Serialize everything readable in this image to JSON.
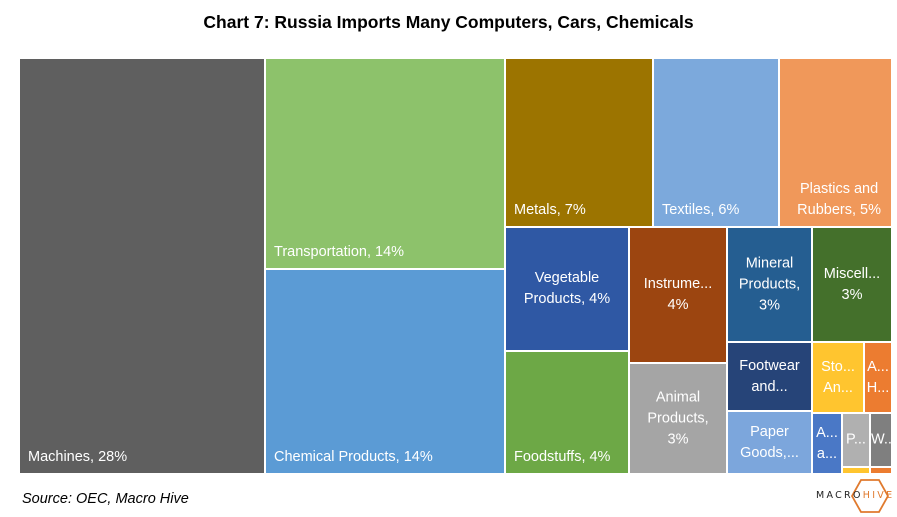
{
  "title": "Chart 7: Russia Imports Many Computers, Cars, Chemicals",
  "source": "Source: OEC, Macro Hive",
  "logo": {
    "left": "MACRO",
    "right": "HIVE",
    "accent": "#e07a2e"
  },
  "chart_data": {
    "type": "treemap",
    "tiles": [
      {
        "label": "Machines, 28%",
        "value": 28,
        "color": "#5f5f5f"
      },
      {
        "label": "Transportation, 14%",
        "value": 14,
        "color": "#8dc26b"
      },
      {
        "label": "Chemical Products, 14%",
        "value": 14,
        "color": "#5b9bd5"
      },
      {
        "label": "Metals, 7%",
        "value": 7,
        "color": "#9c7400"
      },
      {
        "label": "Textiles, 6%",
        "value": 6,
        "color": "#7ca9dc"
      },
      {
        "label": "Plastics and\nRubbers, 5%",
        "value": 5,
        "color": "#f0985a"
      },
      {
        "label": "Vegetable\nProducts, 4%",
        "value": 4,
        "color": "#2f58a4"
      },
      {
        "label": "Foodstuffs, 4%",
        "value": 4,
        "color": "#6da846"
      },
      {
        "label": "Instrume...\n4%",
        "value": 4,
        "color": "#9c4510"
      },
      {
        "label": "Animal\nProducts,\n3%",
        "value": 3,
        "color": "#a5a5a5"
      },
      {
        "label": "Mineral\nProducts,\n3%",
        "value": 3,
        "color": "#255e91"
      },
      {
        "label": "Miscell...\n3%",
        "value": 3,
        "color": "#44702b"
      },
      {
        "label": "Footwear\nand...",
        "value": 2,
        "color": "#264478"
      },
      {
        "label": "Paper\nGoods,...",
        "value": 2,
        "color": "#7ca6dc"
      },
      {
        "label": "Sto...\nAn...",
        "value": 1,
        "color": "#ffc52f"
      },
      {
        "label": "A...\nH...",
        "value": 1,
        "color": "#ec7c30"
      },
      {
        "label": "A...\na...",
        "value": 1,
        "color": "#4a78c6"
      },
      {
        "label": "P...",
        "value": 0.5,
        "color": "#b0b0b0"
      },
      {
        "label": "W...",
        "value": 0.5,
        "color": "#7f7f7f"
      }
    ]
  }
}
